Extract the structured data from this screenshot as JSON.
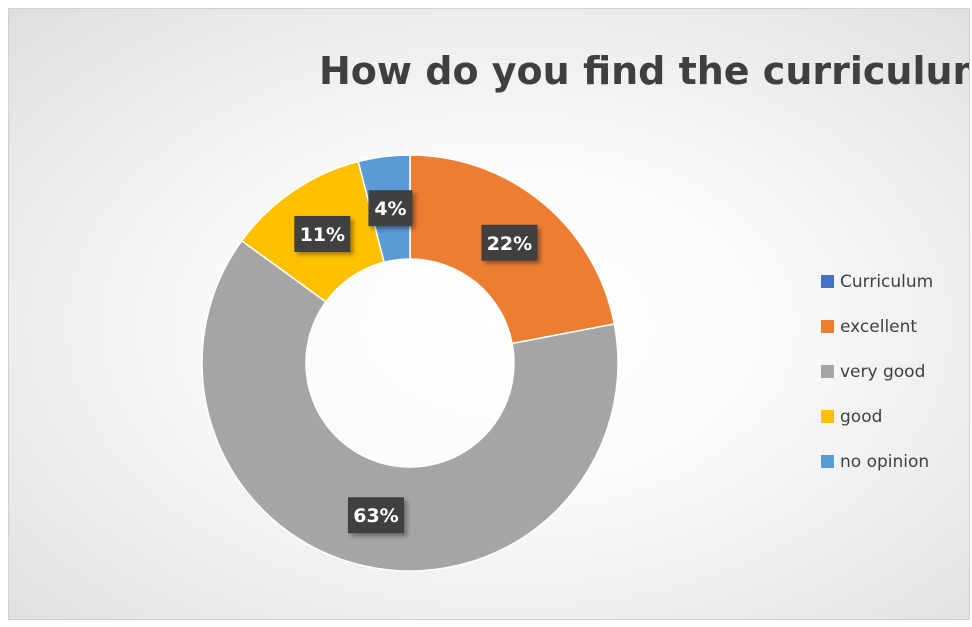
{
  "chart_data": {
    "type": "pie",
    "title": "How do you find the curriculum?",
    "donut": true,
    "categories": [
      "Curriculum",
      "excellent",
      "very good",
      "good",
      "no opinion"
    ],
    "values": [
      0,
      22,
      63,
      11,
      4
    ],
    "data_labels": [
      "",
      "22%",
      "63%",
      "11%",
      "4%"
    ],
    "colors": [
      "#4472c4",
      "#ed7d31",
      "#a5a5a5",
      "#ffc000",
      "#5b9bd5"
    ],
    "legend": {
      "position": "right",
      "entries": [
        "Curriculum",
        "excellent",
        "very good",
        "good",
        "no opinion"
      ]
    }
  }
}
